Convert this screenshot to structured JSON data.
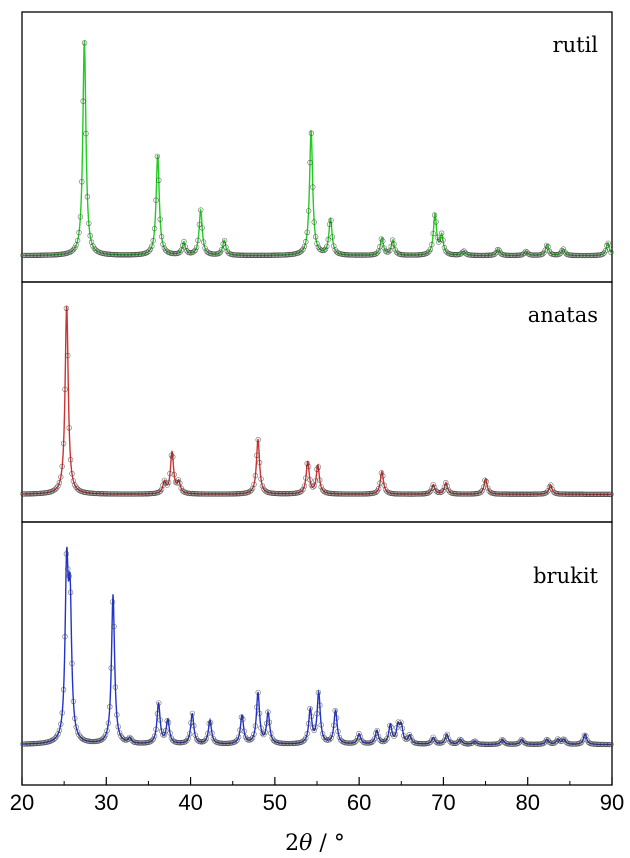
{
  "chart_data": {
    "type": "line",
    "x_axis": {
      "label_prefix": "2",
      "label_symbol": "θ",
      "label_suffix": " / °",
      "range": [
        20,
        90
      ],
      "ticks": [
        20,
        30,
        40,
        50,
        60,
        70,
        80,
        90
      ]
    },
    "panels": [
      {
        "label": "rutil",
        "color": "#22cc22",
        "baseline": 0.02,
        "peaks": [
          {
            "x": 27.4,
            "h": 1.0
          },
          {
            "x": 36.1,
            "h": 0.47
          },
          {
            "x": 39.2,
            "h": 0.06
          },
          {
            "x": 41.2,
            "h": 0.21
          },
          {
            "x": 44.0,
            "h": 0.07
          },
          {
            "x": 54.3,
            "h": 0.58
          },
          {
            "x": 56.6,
            "h": 0.17
          },
          {
            "x": 62.7,
            "h": 0.08
          },
          {
            "x": 64.0,
            "h": 0.07
          },
          {
            "x": 69.0,
            "h": 0.19
          },
          {
            "x": 69.8,
            "h": 0.09
          },
          {
            "x": 72.4,
            "h": 0.02
          },
          {
            "x": 76.5,
            "h": 0.03
          },
          {
            "x": 79.8,
            "h": 0.02
          },
          {
            "x": 82.3,
            "h": 0.05
          },
          {
            "x": 84.2,
            "h": 0.03
          },
          {
            "x": 89.5,
            "h": 0.06
          }
        ]
      },
      {
        "label": "anatas",
        "color": "#cc3333",
        "baseline": 0.03,
        "peaks": [
          {
            "x": 25.3,
            "h": 1.0
          },
          {
            "x": 36.9,
            "h": 0.06
          },
          {
            "x": 37.8,
            "h": 0.22
          },
          {
            "x": 38.6,
            "h": 0.06
          },
          {
            "x": 48.0,
            "h": 0.29
          },
          {
            "x": 53.9,
            "h": 0.17
          },
          {
            "x": 55.1,
            "h": 0.15
          },
          {
            "x": 62.7,
            "h": 0.12
          },
          {
            "x": 68.8,
            "h": 0.05
          },
          {
            "x": 70.3,
            "h": 0.06
          },
          {
            "x": 75.0,
            "h": 0.08
          },
          {
            "x": 82.7,
            "h": 0.05
          }
        ]
      },
      {
        "label": "brukit",
        "color": "#2233cc",
        "baseline": 0.02,
        "peaks": [
          {
            "x": 25.3,
            "h": 0.98
          },
          {
            "x": 25.7,
            "h": 0.78
          },
          {
            "x": 30.8,
            "h": 0.88
          },
          {
            "x": 32.8,
            "h": 0.03
          },
          {
            "x": 36.2,
            "h": 0.24
          },
          {
            "x": 37.3,
            "h": 0.14
          },
          {
            "x": 40.2,
            "h": 0.18
          },
          {
            "x": 42.3,
            "h": 0.14
          },
          {
            "x": 46.1,
            "h": 0.17
          },
          {
            "x": 48.0,
            "h": 0.3
          },
          {
            "x": 49.2,
            "h": 0.18
          },
          {
            "x": 54.2,
            "h": 0.2
          },
          {
            "x": 55.2,
            "h": 0.3
          },
          {
            "x": 57.2,
            "h": 0.2
          },
          {
            "x": 60.0,
            "h": 0.06
          },
          {
            "x": 62.1,
            "h": 0.08
          },
          {
            "x": 63.7,
            "h": 0.11
          },
          {
            "x": 64.6,
            "h": 0.1
          },
          {
            "x": 65.0,
            "h": 0.1
          },
          {
            "x": 66.0,
            "h": 0.05
          },
          {
            "x": 68.8,
            "h": 0.04
          },
          {
            "x": 70.4,
            "h": 0.06
          },
          {
            "x": 72.0,
            "h": 0.03
          },
          {
            "x": 73.7,
            "h": 0.02
          },
          {
            "x": 77.0,
            "h": 0.03
          },
          {
            "x": 79.3,
            "h": 0.03
          },
          {
            "x": 82.3,
            "h": 0.03
          },
          {
            "x": 83.6,
            "h": 0.03
          },
          {
            "x": 84.3,
            "h": 0.03
          },
          {
            "x": 86.8,
            "h": 0.06
          }
        ]
      }
    ],
    "grid": false,
    "legend": "none"
  }
}
